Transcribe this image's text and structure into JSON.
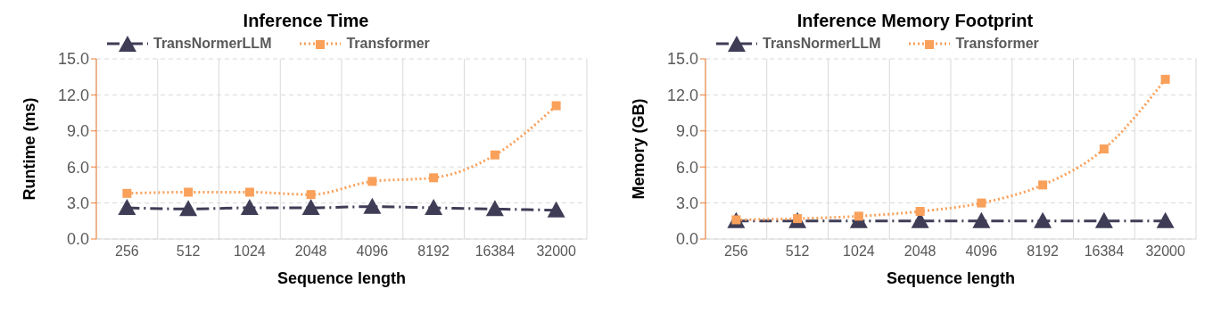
{
  "chart_data": [
    {
      "type": "line",
      "title": "Inference Time",
      "xlabel": "Sequence length",
      "ylabel": "Runtime (ms)",
      "categories": [
        "256",
        "512",
        "1024",
        "2048",
        "4096",
        "8192",
        "16384",
        "32000"
      ],
      "series": [
        {
          "name": "TransNormerLLM",
          "color": "#3f3d56",
          "values": [
            2.6,
            2.5,
            2.6,
            2.6,
            2.7,
            2.6,
            2.5,
            2.4
          ],
          "marker": "triangle",
          "line_style": "dashdot"
        },
        {
          "name": "Transformer",
          "color": "#f9a05a",
          "values": [
            3.8,
            3.9,
            3.9,
            3.7,
            4.8,
            5.1,
            7.0,
            11.1
          ],
          "marker": "square",
          "line_style": "dotted"
        }
      ],
      "ylim": [
        0,
        15
      ],
      "yticks": [
        {
          "value": 0,
          "label": "0.0"
        },
        {
          "value": 3,
          "label": "3.0"
        },
        {
          "value": 6,
          "label": "6.0"
        },
        {
          "value": 9,
          "label": "9.0"
        },
        {
          "value": 12,
          "label": "12.0"
        },
        {
          "value": 15,
          "label": "15.0"
        }
      ],
      "grid": true,
      "legend": "top left"
    },
    {
      "type": "line",
      "title": "Inference Memory Footprint",
      "xlabel": "Sequence length",
      "ylabel": "Memory (GB)",
      "categories": [
        "256",
        "512",
        "1024",
        "2048",
        "4096",
        "8192",
        "16384",
        "32000"
      ],
      "series": [
        {
          "name": "TransNormerLLM",
          "color": "#3f3d56",
          "values": [
            1.5,
            1.5,
            1.5,
            1.5,
            1.5,
            1.5,
            1.5,
            1.5
          ],
          "marker": "triangle",
          "line_style": "dashdot"
        },
        {
          "name": "Transformer",
          "color": "#f9a05a",
          "values": [
            1.6,
            1.7,
            1.9,
            2.3,
            3.0,
            4.5,
            7.5,
            13.3
          ],
          "marker": "square",
          "line_style": "dotted"
        }
      ],
      "ylim": [
        0,
        15
      ],
      "yticks": [
        {
          "value": 0,
          "label": "0.0"
        },
        {
          "value": 3,
          "label": "3.0"
        },
        {
          "value": 6,
          "label": "6.0"
        },
        {
          "value": 9,
          "label": "9.0"
        },
        {
          "value": 12,
          "label": "12.0"
        },
        {
          "value": 15,
          "label": "15.0"
        }
      ],
      "grid": true,
      "legend": "top left"
    }
  ]
}
